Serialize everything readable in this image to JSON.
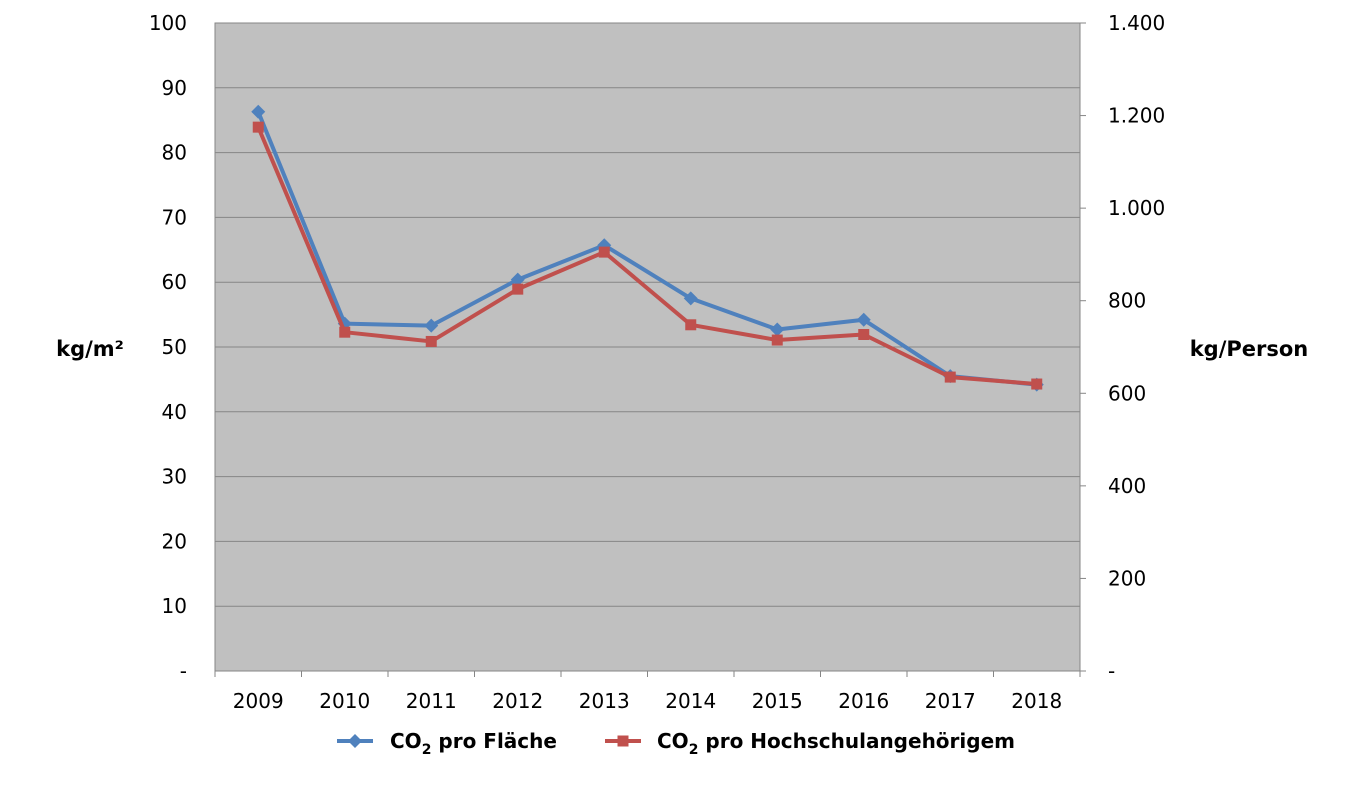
{
  "chart_data": {
    "type": "line",
    "categories": [
      "2009",
      "2010",
      "2011",
      "2012",
      "2013",
      "2014",
      "2015",
      "2016",
      "2017",
      "2018"
    ],
    "series": [
      {
        "name": "CO2 pro Fläche",
        "legend_main": "CO",
        "legend_sub": "2",
        "legend_rest": " pro Fläche",
        "axis": "left",
        "color": "#4F81BD",
        "marker": "diamond",
        "values": [
          86.3,
          53.6,
          53.3,
          60.4,
          65.7,
          57.5,
          52.7,
          54.2,
          45.5,
          44.2
        ]
      },
      {
        "name": "CO2 pro Hochschulangehörigem",
        "legend_main": "CO",
        "legend_sub": "2",
        "legend_rest": " pro Hochschulangehörigem",
        "axis": "right",
        "color": "#C0504D",
        "marker": "square",
        "values": [
          1175,
          732,
          712,
          825,
          905,
          748,
          715,
          727,
          635,
          620
        ]
      }
    ],
    "y_left": {
      "label": "kg/m²",
      "ylim": [
        0,
        100
      ],
      "ticks": [
        0,
        10,
        20,
        30,
        40,
        50,
        60,
        70,
        80,
        90,
        100
      ],
      "tick_labels": [
        "-",
        "10",
        "20",
        "30",
        "40",
        "50",
        "60",
        "70",
        "80",
        "90",
        "100"
      ]
    },
    "y_right": {
      "label": "kg/Person",
      "ylim": [
        0,
        1400
      ],
      "ticks": [
        0,
        200,
        400,
        600,
        800,
        1000,
        1200,
        1400
      ],
      "tick_labels": [
        "-",
        "200",
        "400",
        "600",
        "800",
        "1.000",
        "1.200",
        "1.400"
      ]
    },
    "grid": true,
    "plot_background": "#C0C0C0",
    "legend_position": "bottom"
  }
}
